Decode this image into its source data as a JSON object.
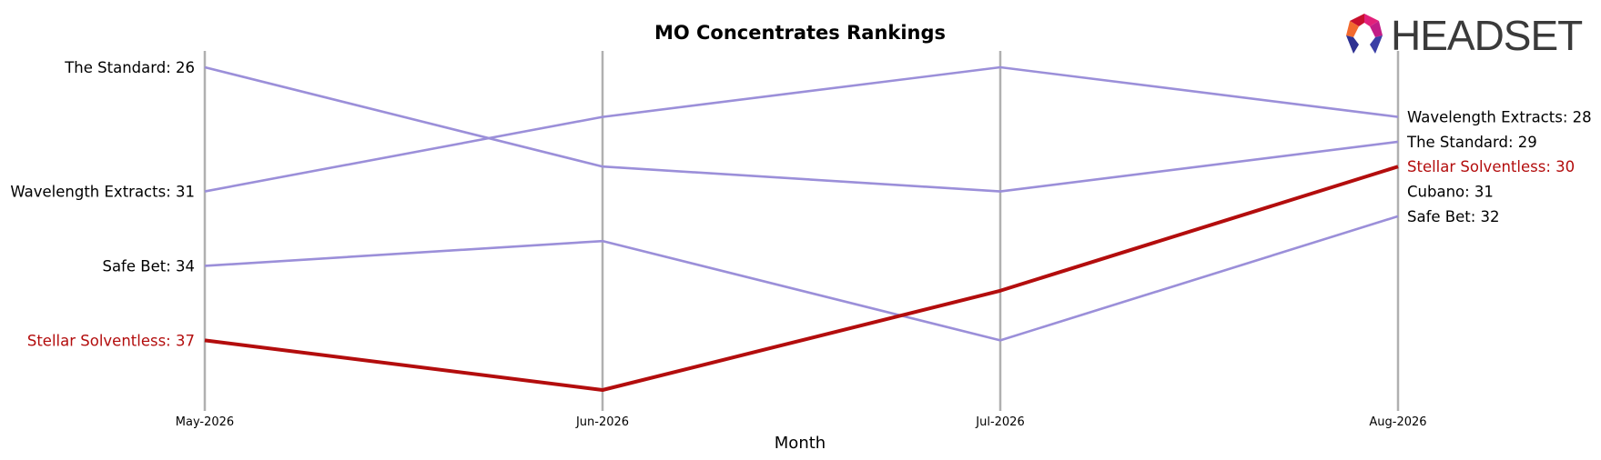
{
  "chart_data": {
    "type": "line",
    "title": "MO Concentrates Rankings",
    "xlabel": "Month",
    "ylabel": "",
    "categories": [
      "May-2026",
      "Jun-2026",
      "Jul-2026",
      "Aug-2026"
    ],
    "y_axis": "rank",
    "ylim": [
      39,
      25.5
    ],
    "grid": "vertical lines at each month",
    "legend": "none (end labels)",
    "series": [
      {
        "name": "The Standard",
        "values": [
          26,
          30,
          31,
          29
        ],
        "color": "#9b8fd9",
        "highlight": false,
        "start_label": "The Standard: 26",
        "end_label": "The Standard: 29"
      },
      {
        "name": "Wavelength Extracts",
        "values": [
          31,
          28,
          26,
          28
        ],
        "color": "#9b8fd9",
        "highlight": false,
        "start_label": "Wavelength Extracts: 31",
        "end_label": "Wavelength Extracts: 28"
      },
      {
        "name": "Safe Bet",
        "values": [
          34,
          33,
          37,
          32
        ],
        "color": "#9b8fd9",
        "highlight": false,
        "start_label": "Safe Bet: 34",
        "end_label": "Safe Bet: 32"
      },
      {
        "name": "Stellar Solventless",
        "values": [
          37,
          39,
          35,
          30
        ],
        "color": "#b30d0d",
        "highlight": true,
        "start_label": "Stellar Solventless: 37",
        "end_label": "Stellar Solventless: 30"
      },
      {
        "name": "Cubano",
        "values": [
          null,
          null,
          null,
          31
        ],
        "color": "#9b8fd9",
        "highlight": false,
        "start_label": "",
        "end_label": "Cubano: 31"
      }
    ]
  },
  "logo": {
    "text": "HEADSET"
  },
  "colors": {
    "grid": "#b0b0b0",
    "series_default": "#9b8fd9",
    "highlight": "#b30d0d",
    "text": "#000000"
  }
}
